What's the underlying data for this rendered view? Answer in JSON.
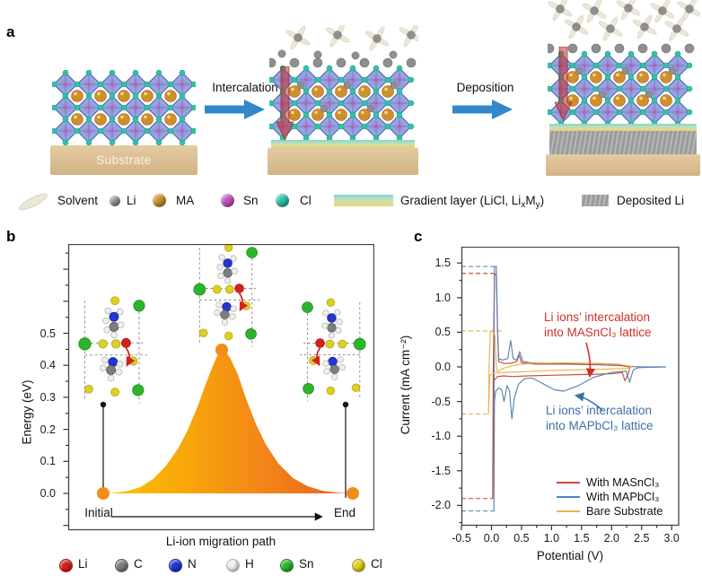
{
  "figure": {
    "panel_a": {
      "label": "a",
      "substrate_label": "Substrate",
      "step1_label": "Intercalation",
      "step2_label": "Deposition",
      "legend": {
        "solvent": "Solvent",
        "li": "Li",
        "ma": "MA",
        "sn": "Sn",
        "cl": "Cl",
        "gradient_pre": "Gradient layer (LiCl, Li",
        "gradient_sub1": "x",
        "gradient_mid": "M",
        "gradient_sub2": "y",
        "gradient_post": ")",
        "deposited": "Deposited Li"
      },
      "colors": {
        "li": "#8f8f8f",
        "ma": "#cf8f2b",
        "sn": "#c455bd",
        "cl": "#2cc4a4",
        "lattice_face": "#8c9cd6",
        "lattice_edge": "#3f68c0",
        "substrate": "#d8bc90",
        "deposited_li": "#a5a5a5",
        "arrow_blue": "#3188cc",
        "red_arrow": "rgba(198,45,38,0.55)",
        "solvent": "#ece8d8"
      }
    },
    "panel_b": {
      "label": "b",
      "ylabel": "Energy (eV)",
      "x_start": "Initial",
      "x_end": "End",
      "xlabel": "Li-ion migration path",
      "atom_legend": [
        {
          "label": "Li",
          "color": "#d42020"
        },
        {
          "label": "C",
          "color": "#7d7d7d"
        },
        {
          "label": "N",
          "color": "#2436cf"
        },
        {
          "label": "H",
          "color": "#f0f0f0"
        },
        {
          "label": "Sn",
          "color": "#2cb52c"
        },
        {
          "label": "Cl",
          "color": "#ddd020"
        }
      ]
    },
    "panel_c": {
      "label": "c",
      "ylabel": "Current (mA cm⁻²)",
      "xlabel": "Potential (V)",
      "annotation_red_line1": "Li ions’ intercalation",
      "annotation_red_line2": "into MASnCl₃ lattice",
      "annotation_blue_line1": "Li ions’ intercalation",
      "annotation_blue_line2": "into MAPbCl₃ lattice",
      "annotation_red_color": "#d03028",
      "annotation_blue_color": "#3d6fa8",
      "legend": [
        {
          "label": "With MASnCl₃"
        },
        {
          "label": "With MAPbCl₃"
        },
        {
          "label": "Bare Substrate"
        }
      ]
    }
  },
  "chart_data": [
    {
      "type": "area",
      "panel": "b",
      "title": "Li-ion migration energy profile",
      "xlabel": "Li-ion migration path",
      "ylabel": "Energy (eV)",
      "x_categories": [
        "Initial",
        "End"
      ],
      "ylim": [
        0,
        0.78
      ],
      "yticks": [
        0.5,
        0.4,
        0.3,
        0.2,
        0.1,
        0.0
      ],
      "barrier_eV": 0.45,
      "endpoint_energies_eV": [
        0.0,
        0.0
      ],
      "stem_marker_energy_eV": 0.28,
      "fill_gradient": [
        "#f8c701",
        "#f8a60a",
        "#f2821a",
        "#e6601a"
      ],
      "marker_color": "#f28c1c",
      "profile": {
        "x_frac": [
          0,
          0.05,
          0.1,
          0.15,
          0.2,
          0.25,
          0.3,
          0.34,
          0.38,
          0.41,
          0.44,
          0.46,
          0.475,
          0.49,
          0.51,
          0.54,
          0.57,
          0.61,
          0.65,
          0.7,
          0.76,
          0.82,
          0.88,
          0.94,
          1.0
        ],
        "energy_eV": [
          0,
          0.002,
          0.008,
          0.02,
          0.045,
          0.085,
          0.14,
          0.2,
          0.275,
          0.34,
          0.4,
          0.435,
          0.45,
          0.445,
          0.42,
          0.37,
          0.3,
          0.22,
          0.155,
          0.095,
          0.048,
          0.022,
          0.008,
          0.002,
          0
        ]
      }
    },
    {
      "type": "line",
      "panel": "c",
      "title": "Cyclic voltammetry",
      "xlabel": "Potential (V)",
      "ylabel": "Current (mA cm⁻²)",
      "xlim": [
        -0.5,
        3.0
      ],
      "ylim": [
        -2.3,
        1.75
      ],
      "xticks": [
        -0.5,
        0.0,
        0.5,
        1.0,
        1.5,
        2.0,
        2.5,
        3.0
      ],
      "yticks": [
        1.5,
        1.0,
        0.5,
        0.0,
        -0.5,
        -1.0,
        -1.5,
        -2.0
      ],
      "legend_position": "lower right",
      "series": [
        {
          "name": "With MASnCl₃",
          "color": "#c84b3a",
          "points": [
            [
              0.02,
              -1.9
            ],
            [
              0.03,
              0.0
            ],
            [
              0.05,
              1.35
            ],
            [
              0.08,
              1.32
            ],
            [
              0.1,
              0.5
            ],
            [
              0.12,
              0.08
            ],
            [
              0.2,
              0.05
            ],
            [
              0.32,
              0.05
            ],
            [
              0.42,
              0.08
            ],
            [
              0.46,
              0.17
            ],
            [
              0.5,
              0.06
            ],
            [
              0.7,
              0.04
            ],
            [
              1.2,
              0.04
            ],
            [
              1.8,
              0.03
            ],
            [
              2.15,
              0.02
            ],
            [
              2.3,
              0.0
            ],
            [
              2.28,
              -0.1
            ],
            [
              2.22,
              -0.2
            ],
            [
              2.18,
              -0.08
            ],
            [
              2.0,
              -0.1
            ],
            [
              1.5,
              -0.11
            ],
            [
              1.0,
              -0.12
            ],
            [
              0.6,
              -0.13
            ],
            [
              0.35,
              -0.14
            ],
            [
              0.2,
              -0.13
            ],
            [
              0.1,
              -0.14
            ],
            [
              0.04,
              -0.2
            ],
            [
              0.02,
              -1.9
            ]
          ]
        },
        {
          "name": "With MAPbCl₃",
          "color": "#5b84b1",
          "points": [
            [
              0.04,
              -2.08
            ],
            [
              0.045,
              0.5
            ],
            [
              0.05,
              1.45
            ],
            [
              0.08,
              1.45
            ],
            [
              0.1,
              0.6
            ],
            [
              0.12,
              0.12
            ],
            [
              0.18,
              0.1
            ],
            [
              0.27,
              0.12
            ],
            [
              0.32,
              0.38
            ],
            [
              0.36,
              0.12
            ],
            [
              0.42,
              0.1
            ],
            [
              0.47,
              0.22
            ],
            [
              0.52,
              0.08
            ],
            [
              0.65,
              0.06
            ],
            [
              1.0,
              0.05
            ],
            [
              1.6,
              0.05
            ],
            [
              2.1,
              0.04
            ],
            [
              2.3,
              0.01
            ],
            [
              2.45,
              0.0
            ],
            [
              2.9,
              0.0
            ],
            [
              2.45,
              -0.01
            ],
            [
              2.36,
              -0.04
            ],
            [
              2.3,
              -0.22
            ],
            [
              2.24,
              -0.06
            ],
            [
              2.0,
              -0.08
            ],
            [
              1.7,
              -0.15
            ],
            [
              1.45,
              -0.27
            ],
            [
              1.2,
              -0.35
            ],
            [
              1.05,
              -0.33
            ],
            [
              0.85,
              -0.24
            ],
            [
              0.68,
              -0.16
            ],
            [
              0.55,
              -0.17
            ],
            [
              0.45,
              -0.25
            ],
            [
              0.38,
              -0.45
            ],
            [
              0.34,
              -0.75
            ],
            [
              0.3,
              -0.35
            ],
            [
              0.26,
              -0.27
            ],
            [
              0.21,
              -0.5
            ],
            [
              0.17,
              -0.33
            ],
            [
              0.12,
              -0.3
            ],
            [
              0.07,
              -0.35
            ],
            [
              0.05,
              -0.5
            ],
            [
              0.04,
              -2.08
            ]
          ]
        },
        {
          "name": "Bare Substrate",
          "color": "#e6b54a",
          "points": [
            [
              -0.05,
              -0.68
            ],
            [
              -0.04,
              0.0
            ],
            [
              -0.02,
              0.52
            ],
            [
              0.03,
              0.5
            ],
            [
              0.06,
              0.45
            ],
            [
              0.08,
              0.0
            ],
            [
              0.1,
              -0.07
            ],
            [
              0.2,
              -0.02
            ],
            [
              0.4,
              0.03
            ],
            [
              0.7,
              0.05
            ],
            [
              1.2,
              0.06
            ],
            [
              1.8,
              0.05
            ],
            [
              2.1,
              0.04
            ],
            [
              2.3,
              0.01
            ],
            [
              2.35,
              0.0
            ],
            [
              2.3,
              -0.02
            ],
            [
              2.0,
              -0.03
            ],
            [
              1.5,
              -0.04
            ],
            [
              1.0,
              -0.05
            ],
            [
              0.5,
              -0.07
            ],
            [
              0.2,
              -0.08
            ],
            [
              0.05,
              -0.09
            ],
            [
              -0.03,
              -0.12
            ],
            [
              -0.05,
              -0.68
            ]
          ]
        }
      ],
      "dashed_guides": [
        {
          "color": "#5b84b1",
          "current": 1.45,
          "x_from": -0.5,
          "x_to": 0.07
        },
        {
          "color": "#c84b3a",
          "current": 1.35,
          "x_from": -0.5,
          "x_to": 0.07
        },
        {
          "color": "#e6b54a",
          "current": 0.52,
          "x_from": -0.5,
          "x_to": 0.2
        },
        {
          "color": "#e6b54a",
          "current": -0.68,
          "x_from": -0.5,
          "x_to": -0.05
        },
        {
          "color": "#c84b3a",
          "current": -1.9,
          "x_from": -0.5,
          "x_to": 0.02
        },
        {
          "color": "#5b84b1",
          "current": -2.08,
          "x_from": -0.5,
          "x_to": 0.05
        }
      ]
    }
  ]
}
